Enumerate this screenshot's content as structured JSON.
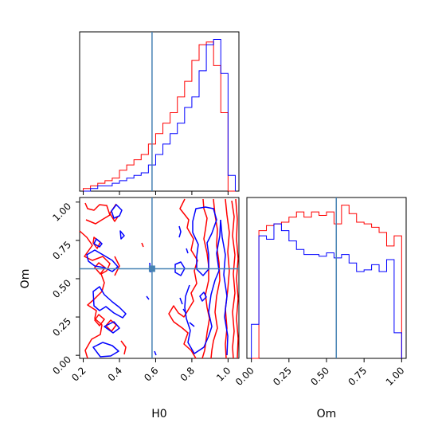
{
  "chart_data": {
    "type": "corner",
    "parameters": [
      "H0",
      "Om"
    ],
    "truth": {
      "H0": 0.58,
      "Om": 0.565
    },
    "truth_color": "#4682b4",
    "series": [
      {
        "color": "#ff0000"
      },
      {
        "color": "#0000ff"
      }
    ],
    "panels": [
      {
        "id": "H0-hist",
        "type": "histogram",
        "xlim": [
          0.18,
          1.06
        ],
        "bin_edges": [
          0.2,
          0.24,
          0.28,
          0.32,
          0.36,
          0.4,
          0.44,
          0.48,
          0.52,
          0.56,
          0.6,
          0.64,
          0.68,
          0.72,
          0.76,
          0.8,
          0.84,
          0.88,
          0.92,
          0.96,
          1.0,
          1.04
        ],
        "red_counts": [
          1,
          2,
          3,
          4,
          5,
          8,
          10,
          12,
          14,
          18,
          22,
          26,
          30,
          36,
          42,
          50,
          56,
          57,
          48,
          30,
          0
        ],
        "blue_counts": [
          0,
          1,
          2,
          2,
          3,
          4,
          5,
          6,
          7,
          10,
          14,
          18,
          22,
          26,
          32,
          36,
          46,
          56,
          58,
          45,
          6
        ]
      },
      {
        "id": "H0-Om-contour",
        "type": "contour",
        "xlabel": "H0",
        "ylabel": "Om",
        "xlim": [
          0.18,
          1.06
        ],
        "ylim": [
          -0.02,
          1.03
        ],
        "xticks": [
          "0.2",
          "0.4",
          "0.6",
          "0.8",
          "1.0"
        ],
        "xtick_values": [
          0.2,
          0.4,
          0.6,
          0.8,
          1.0
        ],
        "yticks": [
          "0.00",
          "0.25",
          "0.50",
          "0.75",
          "1.00"
        ],
        "ytick_values": [
          0.0,
          0.25,
          0.5,
          0.75,
          1.0
        ]
      },
      {
        "id": "Om-hist",
        "type": "histogram",
        "xlabel": "Om",
        "xlim": [
          -0.03,
          1.03
        ],
        "xticks": [
          "0.00",
          "0.25",
          "0.50",
          "0.75",
          "1.00"
        ],
        "xtick_values": [
          0.0,
          0.25,
          0.5,
          0.75,
          1.0
        ],
        "bin_edges": [
          0.0,
          0.05,
          0.1,
          0.15,
          0.2,
          0.25,
          0.3,
          0.35,
          0.4,
          0.45,
          0.5,
          0.55,
          0.6,
          0.65,
          0.7,
          0.75,
          0.8,
          0.85,
          0.9,
          0.95,
          1.0
        ],
        "red_counts": [
          0,
          75,
          78,
          79,
          80,
          83,
          86,
          83,
          86,
          84,
          86,
          79,
          90,
          85,
          80,
          79,
          77,
          74,
          66,
          72
        ],
        "blue_counts": [
          20,
          72,
          70,
          79,
          75,
          69,
          64,
          61,
          61,
          60,
          62,
          59,
          61,
          56,
          51,
          52,
          55,
          51,
          58,
          15
        ]
      }
    ]
  }
}
